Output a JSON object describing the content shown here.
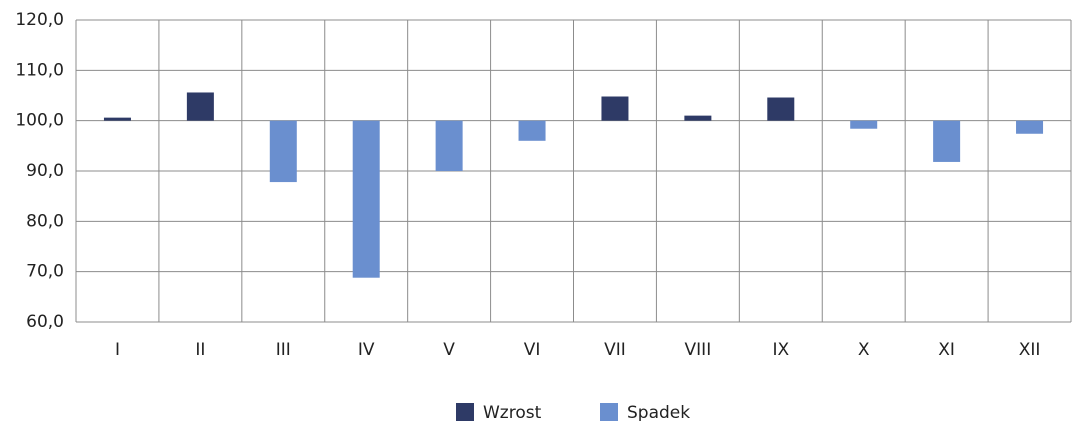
{
  "chart_data": {
    "type": "bar",
    "categories": [
      "I",
      "II",
      "III",
      "IV",
      "V",
      "VI",
      "VII",
      "VIII",
      "IX",
      "X",
      "XI",
      "XII"
    ],
    "series": [
      {
        "name": "Wzrost",
        "color": "#2e3a66",
        "values": [
          100.6,
          105.6,
          null,
          null,
          null,
          null,
          104.8,
          101.0,
          104.6,
          null,
          null,
          null
        ]
      },
      {
        "name": "Spadek",
        "color": "#6a8fcf",
        "values": [
          null,
          null,
          87.8,
          68.8,
          90.0,
          96.0,
          null,
          null,
          null,
          98.4,
          91.8,
          97.4
        ]
      }
    ],
    "baseline": 100,
    "ylim": [
      60,
      120
    ],
    "yticks": [
      {
        "value": 60,
        "label": "60,0"
      },
      {
        "value": 70,
        "label": "70,0"
      },
      {
        "value": 80,
        "label": "80,0"
      },
      {
        "value": 90,
        "label": "90,0"
      },
      {
        "value": 100,
        "label": "100,0"
      },
      {
        "value": 110,
        "label": "110,0"
      },
      {
        "value": 120,
        "label": "120,0"
      }
    ],
    "grid": true,
    "legend": "bottom"
  }
}
